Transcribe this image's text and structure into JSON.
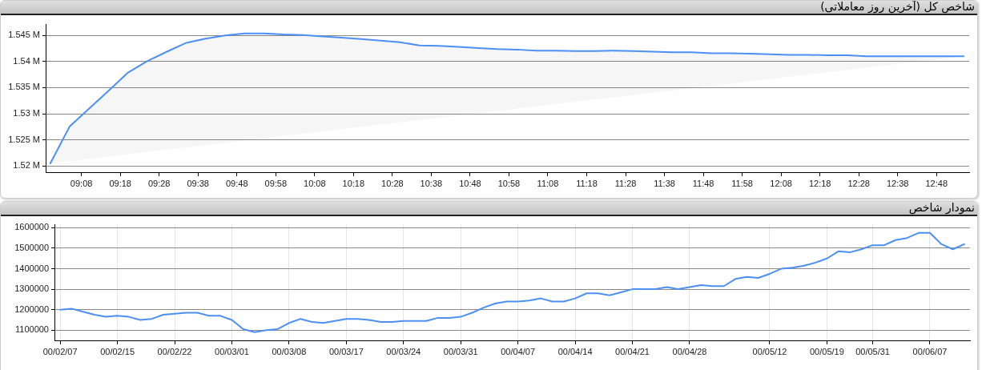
{
  "chart_data": [
    {
      "type": "area",
      "title": "شاخص کل (آخرین روز معاملاتی)",
      "x": [
        9,
        9.0833,
        9.1667,
        9.25,
        9.3333,
        9.4167,
        9.5,
        9.5833,
        9.6667,
        9.75,
        9.8333,
        9.9167,
        10,
        10.0833,
        10.1667,
        10.25,
        10.3333,
        10.4167,
        10.5,
        10.5833,
        10.6667,
        10.75,
        10.8333,
        10.9167,
        11,
        11.0833,
        11.1667,
        11.25,
        11.3333,
        11.4167,
        11.5,
        11.5833,
        11.6667,
        11.75,
        11.8333,
        11.9167,
        12,
        12.0833,
        12.1667,
        12.25,
        12.3333,
        12.4167,
        12.5,
        12.5833,
        12.6667,
        12.75,
        12.8333,
        12.9167
      ],
      "series": [
        {
          "color": "#4c8ff5",
          "values": [
            1520500,
            1527600,
            1531000,
            1534400,
            1537900,
            1540100,
            1541900,
            1543600,
            1544400,
            1545000,
            1545400,
            1545400,
            1545200,
            1545100,
            1544800,
            1544600,
            1544300,
            1544000,
            1543700,
            1543100,
            1543000,
            1542800,
            1542600,
            1542400,
            1542300,
            1542100,
            1542100,
            1542000,
            1542000,
            1542100,
            1542000,
            1541900,
            1541800,
            1541800,
            1541600,
            1541600,
            1541500,
            1541400,
            1541300,
            1541300,
            1541200,
            1541200,
            1541000,
            1541000,
            1541000,
            1541000,
            1541000,
            1541000
          ]
        }
      ],
      "xlim": [
        8.98,
        12.94
      ],
      "xticks": [
        {
          "value": 9.1333,
          "label": "09:08"
        },
        {
          "value": 9.3,
          "label": "09:18"
        },
        {
          "value": 9.4667,
          "label": "09:28"
        },
        {
          "value": 9.6333,
          "label": "09:38"
        },
        {
          "value": 9.8,
          "label": "09:48"
        },
        {
          "value": 9.9667,
          "label": "09:58"
        },
        {
          "value": 10.1333,
          "label": "10:08"
        },
        {
          "value": 10.3,
          "label": "10:18"
        },
        {
          "value": 10.4667,
          "label": "10:28"
        },
        {
          "value": 10.6333,
          "label": "10:38"
        },
        {
          "value": 10.8,
          "label": "10:48"
        },
        {
          "value": 10.9667,
          "label": "10:58"
        },
        {
          "value": 11.1333,
          "label": "11:08"
        },
        {
          "value": 11.3,
          "label": "11:18"
        },
        {
          "value": 11.4667,
          "label": "11:28"
        },
        {
          "value": 11.6333,
          "label": "11:38"
        },
        {
          "value": 11.8,
          "label": "11:48"
        },
        {
          "value": 11.9667,
          "label": "11:58"
        },
        {
          "value": 12.1333,
          "label": "12:08"
        },
        {
          "value": 12.3,
          "label": "12:18"
        },
        {
          "value": 12.4667,
          "label": "12:28"
        },
        {
          "value": 12.6333,
          "label": "12:38"
        },
        {
          "value": 12.8,
          "label": "12:48"
        }
      ],
      "ylim": [
        1518800,
        1547100
      ],
      "yticks": [
        {
          "value": 1520000,
          "label": "1.52 M"
        },
        {
          "value": 1525000,
          "label": "1.525 M"
        },
        {
          "value": 1530000,
          "label": "1.53 M"
        },
        {
          "value": 1535000,
          "label": "1.535 M"
        },
        {
          "value": 1540000,
          "label": "1.54 M"
        },
        {
          "value": 1545000,
          "label": "1.545 M"
        }
      ],
      "grid": "y"
    },
    {
      "type": "line",
      "title": "نمودار شاخص",
      "categories": [
        "00/02/07",
        null,
        null,
        null,
        null,
        "00/02/15",
        null,
        null,
        null,
        null,
        "00/02/22",
        null,
        null,
        null,
        null,
        "00/03/01",
        null,
        null,
        null,
        null,
        "00/03/08",
        null,
        null,
        null,
        null,
        "00/03/17",
        null,
        null,
        null,
        null,
        "00/03/24",
        null,
        null,
        null,
        null,
        "00/03/31",
        null,
        null,
        null,
        null,
        "00/04/07",
        null,
        null,
        null,
        null,
        "00/04/14",
        null,
        null,
        null,
        null,
        "00/04/21",
        null,
        null,
        null,
        null,
        "00/04/28",
        null,
        null,
        null,
        null,
        null,
        null,
        "00/05/12",
        null,
        null,
        null,
        null,
        "00/05/19",
        null,
        null,
        null,
        "00/05/31",
        null,
        null,
        null,
        null,
        "00/06/07",
        null,
        null,
        null
      ],
      "series": [
        {
          "color": "#4c8ff5",
          "values": [
            1200000,
            1205000,
            1190000,
            1175000,
            1165000,
            1170000,
            1165000,
            1150000,
            1155000,
            1175000,
            1180000,
            1185000,
            1185000,
            1170000,
            1170000,
            1150000,
            1105000,
            1090000,
            1100000,
            1105000,
            1135000,
            1155000,
            1140000,
            1135000,
            1145000,
            1155000,
            1155000,
            1150000,
            1140000,
            1140000,
            1145000,
            1145000,
            1145000,
            1160000,
            1160000,
            1165000,
            1185000,
            1210000,
            1230000,
            1240000,
            1240000,
            1245000,
            1255000,
            1240000,
            1240000,
            1255000,
            1280000,
            1280000,
            1270000,
            1285000,
            1300000,
            1300000,
            1300000,
            1310000,
            1300000,
            1310000,
            1320000,
            1315000,
            1315000,
            1350000,
            1360000,
            1355000,
            1375000,
            1400000,
            1405000,
            1415000,
            1430000,
            1450000,
            1485000,
            1480000,
            1495000,
            1515000,
            1515000,
            1540000,
            1550000,
            1575000,
            1575000,
            1520000,
            1495000,
            1520000
          ]
        }
      ],
      "ylim": [
        1050000,
        1615000
      ],
      "yticks": [
        1100000,
        1200000,
        1300000,
        1400000,
        1500000,
        1600000
      ],
      "grid": true
    }
  ]
}
